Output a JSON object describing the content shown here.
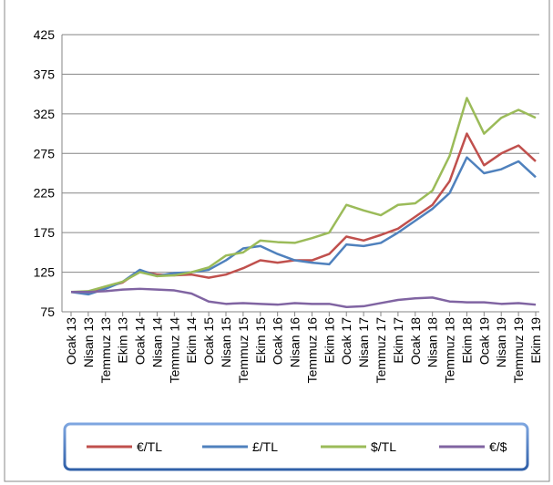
{
  "chart_data": {
    "type": "line",
    "categories": [
      "Ocak 13",
      "Nisan 13",
      "Temmuz 13",
      "Ekim 13",
      "Ocak 14",
      "Nisan 14",
      "Temmuz 14",
      "Ekim 14",
      "Ocak 15",
      "Nisan 15",
      "Temmuz 15",
      "Ekim 15",
      "Ocak 16",
      "Nisan 16",
      "Temmuz 16",
      "Ekim 16",
      "Ocak 17",
      "Nisan 17",
      "Temmuz 17",
      "Ekim 17",
      "Ocak 18",
      "Nisan 18",
      "Temmuz 18",
      "Ekim 18",
      "Ocak 19",
      "Nisan 19",
      "Temmuz 19",
      "Ekim 19"
    ],
    "series": [
      {
        "name": "€/TL",
        "color": "#c0504d",
        "values": [
          100,
          99,
          106,
          112,
          127,
          122,
          121,
          122,
          118,
          122,
          130,
          140,
          137,
          140,
          140,
          148,
          170,
          165,
          172,
          180,
          195,
          210,
          240,
          300,
          260,
          275,
          285,
          265
        ]
      },
      {
        "name": "£/TL",
        "color": "#4f81bd",
        "values": [
          100,
          97,
          104,
          113,
          128,
          120,
          124,
          125,
          128,
          140,
          155,
          158,
          148,
          140,
          137,
          135,
          160,
          158,
          162,
          175,
          190,
          205,
          225,
          270,
          250,
          255,
          265,
          245
        ]
      },
      {
        "name": "$/TL",
        "color": "#9bbb59",
        "values": [
          100,
          101,
          107,
          113,
          125,
          120,
          121,
          125,
          131,
          146,
          150,
          165,
          163,
          162,
          168,
          175,
          210,
          203,
          197,
          210,
          212,
          228,
          272,
          345,
          300,
          320,
          330,
          320
        ]
      },
      {
        "name": "€/$",
        "color": "#8064a2",
        "values": [
          100,
          100,
          101,
          103,
          104,
          103,
          102,
          98,
          88,
          85,
          86,
          85,
          84,
          86,
          85,
          85,
          81,
          82,
          86,
          90,
          92,
          93,
          88,
          87,
          87,
          85,
          86,
          84
        ]
      }
    ],
    "ylim": [
      75,
      425
    ],
    "yticks": [
      75,
      125,
      175,
      225,
      275,
      325,
      375,
      425
    ],
    "grid": true,
    "legend": "bottom"
  }
}
